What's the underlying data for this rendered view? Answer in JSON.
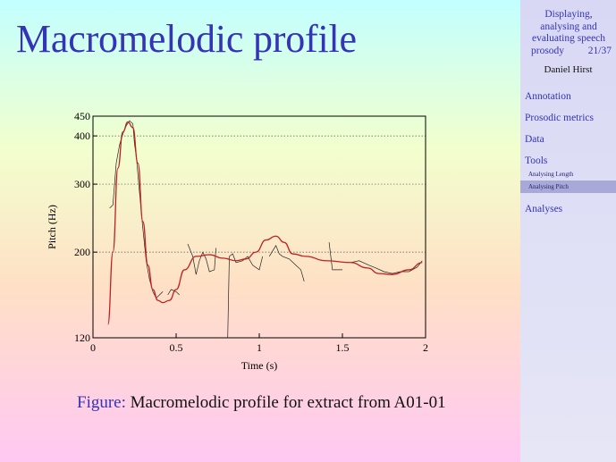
{
  "slide": {
    "title": "Macromelodic profile",
    "caption_label": "Figure:",
    "caption_text": " Macromelodic profile for extract from A01-01"
  },
  "sidebar": {
    "title_lines": [
      "Displaying,",
      "analysing and",
      "evaluating speech"
    ],
    "title_last": "prosody",
    "page": "21/37",
    "author": "Daniel Hirst",
    "sections": [
      {
        "label": "Annotation"
      },
      {
        "label": "Prosodic metrics"
      },
      {
        "label": "Data"
      },
      {
        "label": "Tools"
      }
    ],
    "subsections": [
      {
        "label": "Analysing Length",
        "active": false
      },
      {
        "label": "Analysing Pitch",
        "active": true
      }
    ],
    "after": [
      {
        "label": "Analyses"
      }
    ]
  },
  "colors": {
    "title": "#3533b8",
    "curve": "#c02020",
    "raw": "#222222"
  },
  "chart_data": {
    "type": "line",
    "xlabel": "Time (s)",
    "ylabel": "Pitch (Hz)",
    "xlim": [
      0,
      2
    ],
    "ylim": [
      120,
      450
    ],
    "yscale": "log",
    "grid": "horizontal dotted",
    "x_ticks": [
      {
        "v": 0,
        "label": "0"
      },
      {
        "v": 0.5,
        "label": "0.5"
      },
      {
        "v": 1,
        "label": "1"
      },
      {
        "v": 1.5,
        "label": "1.5"
      },
      {
        "v": 2,
        "label": "2"
      }
    ],
    "y_ticks": [
      {
        "v": 120,
        "label": "120"
      },
      {
        "v": 200,
        "label": "200"
      },
      {
        "v": 300,
        "label": "300"
      },
      {
        "v": 400,
        "label": "400"
      },
      {
        "v": 450,
        "label": "450"
      }
    ],
    "series": [
      {
        "role": "smoothed profile",
        "points": [
          [
            0.09,
            130
          ],
          [
            0.12,
            200
          ],
          [
            0.15,
            330
          ],
          [
            0.18,
            410
          ],
          [
            0.21,
            435
          ],
          [
            0.24,
            420
          ],
          [
            0.27,
            340
          ],
          [
            0.3,
            240
          ],
          [
            0.33,
            185
          ],
          [
            0.36,
            160
          ],
          [
            0.39,
            150
          ],
          [
            0.42,
            148
          ],
          [
            0.46,
            150
          ],
          [
            0.5,
            160
          ],
          [
            0.55,
            180
          ],
          [
            0.62,
            195
          ],
          [
            0.7,
            197
          ],
          [
            0.78,
            193
          ],
          [
            0.86,
            190
          ],
          [
            0.92,
            192
          ],
          [
            0.98,
            200
          ],
          [
            1.04,
            215
          ],
          [
            1.1,
            220
          ],
          [
            1.15,
            212
          ],
          [
            1.2,
            198
          ],
          [
            1.28,
            195
          ],
          [
            1.4,
            190
          ],
          [
            1.55,
            188
          ],
          [
            1.65,
            182
          ],
          [
            1.72,
            176
          ],
          [
            1.8,
            175
          ],
          [
            1.9,
            180
          ],
          [
            1.98,
            188
          ]
        ]
      },
      {
        "role": "raw F0",
        "segments": [
          [
            [
              0.1,
              260
            ],
            [
              0.12,
              265
            ],
            [
              0.14,
              340
            ],
            [
              0.16,
              380
            ],
            [
              0.18,
              405
            ],
            [
              0.2,
              425
            ],
            [
              0.22,
              438
            ],
            [
              0.24,
              430
            ],
            [
              0.25,
              380
            ],
            [
              0.26,
              355
            ],
            [
              0.28,
              285
            ],
            [
              0.3,
              230
            ],
            [
              0.32,
              190
            ],
            [
              0.34,
              170
            ],
            [
              0.36,
              158
            ],
            [
              0.38,
              152
            ],
            [
              0.4,
              155
            ],
            [
              0.42,
              158
            ]
          ],
          [
            [
              0.45,
              155
            ],
            [
              0.47,
              160
            ],
            [
              0.5,
              158
            ],
            [
              0.52,
              155
            ]
          ],
          [
            [
              0.57,
              210
            ],
            [
              0.6,
              195
            ],
            [
              0.62,
              175
            ],
            [
              0.64,
              190
            ],
            [
              0.66,
              200
            ],
            [
              0.68,
              192
            ],
            [
              0.7,
              178
            ],
            [
              0.73,
              180
            ],
            [
              0.74,
              205
            ]
          ],
          [
            [
              0.81,
              120
            ],
            [
              0.82,
              195
            ],
            [
              0.84,
              198
            ],
            [
              0.86,
              188
            ],
            [
              0.9,
              190
            ],
            [
              0.93,
              195
            ],
            [
              0.96,
              185
            ],
            [
              1.0,
              180
            ],
            [
              1.02,
              195
            ]
          ],
          [
            [
              1.06,
              195
            ],
            [
              1.1,
              208
            ],
            [
              1.12,
              198
            ],
            [
              1.14,
              195
            ],
            [
              1.18,
              192
            ],
            [
              1.22,
              185
            ],
            [
              1.25,
              180
            ],
            [
              1.27,
              168
            ]
          ],
          [
            [
              1.42,
              212
            ],
            [
              1.44,
              180
            ],
            [
              1.5,
              180
            ]
          ],
          [
            [
              1.55,
              188
            ],
            [
              1.6,
              190
            ],
            [
              1.66,
              185
            ],
            [
              1.7,
              182
            ],
            [
              1.75,
              178
            ],
            [
              1.8,
              176
            ],
            [
              1.85,
              178
            ],
            [
              1.9,
              178
            ],
            [
              1.95,
              183
            ],
            [
              1.98,
              190
            ]
          ]
        ]
      }
    ]
  }
}
